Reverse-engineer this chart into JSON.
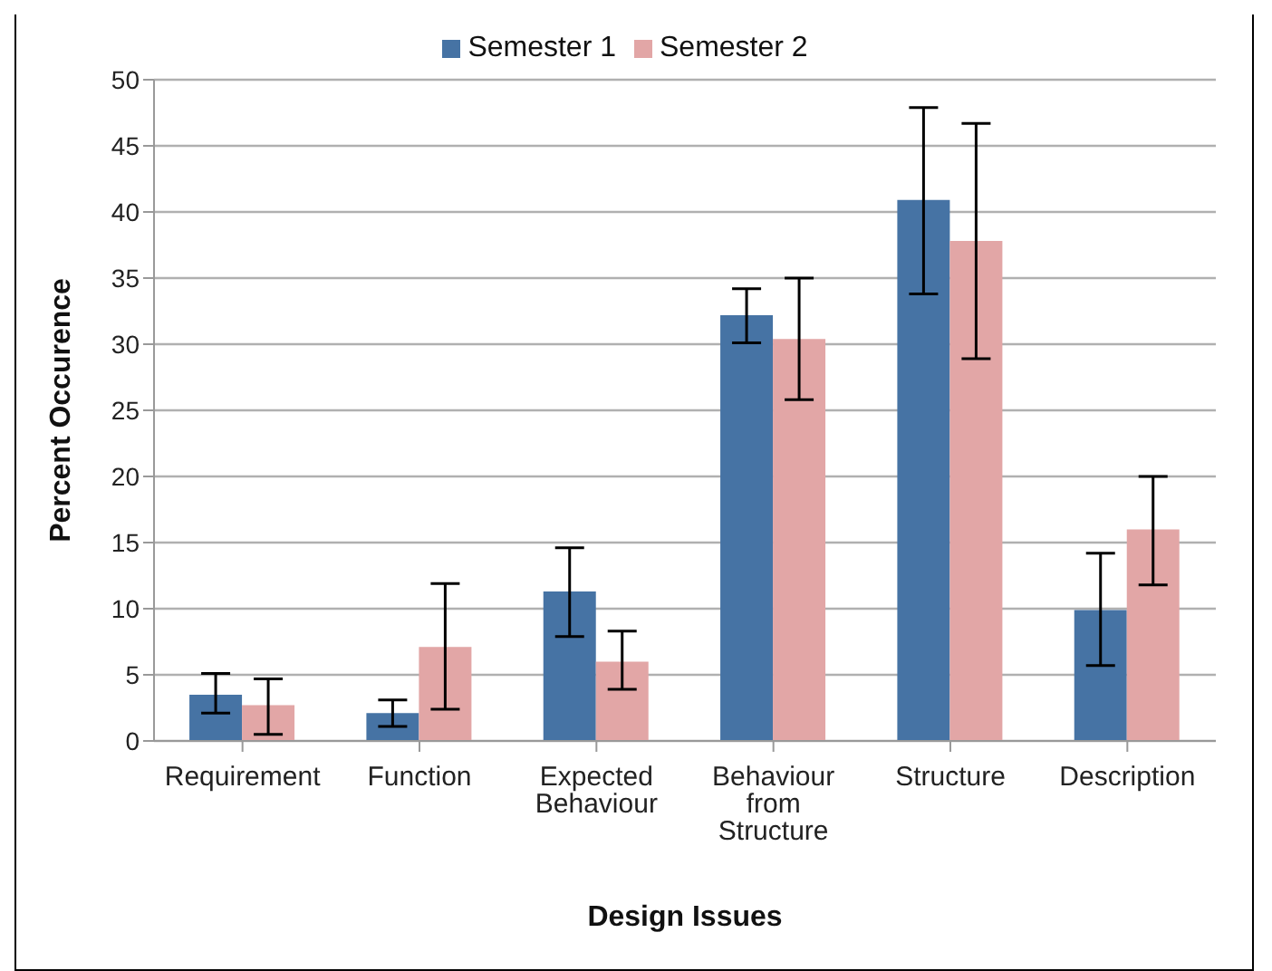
{
  "chart_data": {
    "type": "bar",
    "xlabel": "Design Issues",
    "ylabel": "Percent Occurence",
    "categories": [
      "Requirement",
      "Function",
      "Expected Behaviour",
      "Behaviour from Structure",
      "Structure",
      "Description"
    ],
    "series": [
      {
        "name": "Semester 1",
        "color": "#4673a4",
        "values": [
          3.5,
          2.1,
          11.3,
          32.2,
          40.9,
          9.9
        ],
        "errors": [
          [
            2.1,
            5.1
          ],
          [
            1.1,
            3.1
          ],
          [
            7.9,
            14.6
          ],
          [
            30.1,
            34.2
          ],
          [
            33.8,
            47.9
          ],
          [
            5.7,
            14.2
          ]
        ]
      },
      {
        "name": "Semester 2",
        "color": "#e2a6a6",
        "values": [
          2.7,
          7.1,
          6.0,
          30.4,
          37.8,
          16.0
        ],
        "errors": [
          [
            0.5,
            4.7
          ],
          [
            2.4,
            11.9
          ],
          [
            3.9,
            8.3
          ],
          [
            25.8,
            35.0
          ],
          [
            28.9,
            46.7
          ],
          [
            11.8,
            20.0
          ]
        ]
      }
    ],
    "ylim": [
      0,
      50
    ],
    "yticks": [
      0,
      5,
      10,
      15,
      20,
      25,
      30,
      35,
      40,
      45,
      50
    ],
    "grid": "y",
    "legend": "top"
  }
}
